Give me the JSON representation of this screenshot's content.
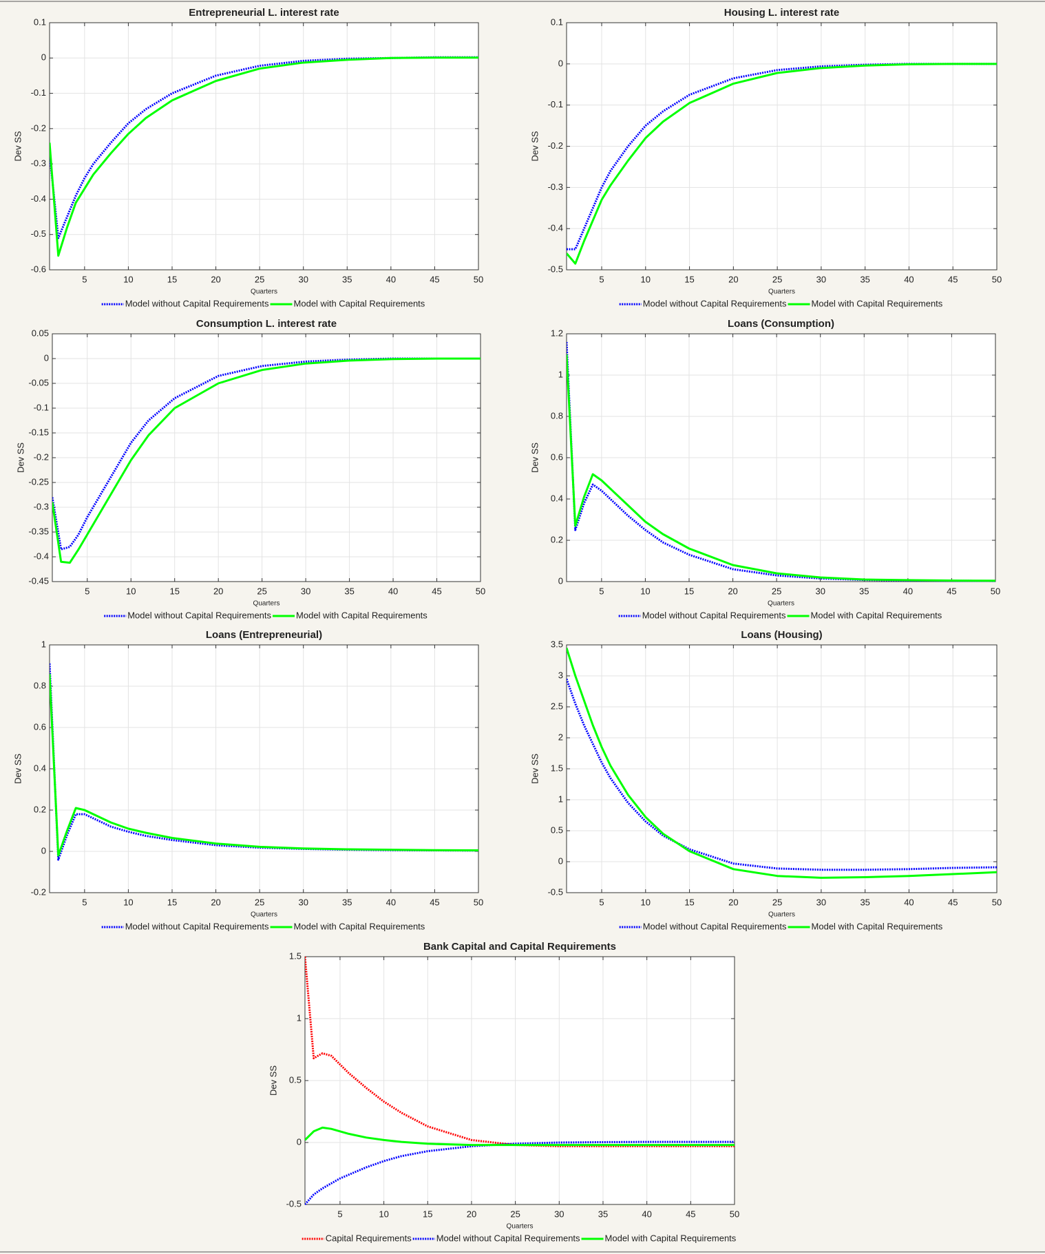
{
  "chart_data": [
    {
      "type": "line",
      "title": "Entrepreneurial L. interest rate",
      "y_label": "Dev SS",
      "x_label": "Quarters",
      "x": [
        1,
        2,
        3,
        4,
        5,
        6,
        8,
        10,
        12,
        15,
        20,
        25,
        30,
        35,
        40,
        45,
        50
      ],
      "xlim": [
        1,
        50
      ],
      "xticks": [
        5,
        10,
        15,
        20,
        25,
        30,
        35,
        40,
        45,
        50
      ],
      "ylim": [
        -0.6,
        0.1
      ],
      "yticks": [
        -0.6,
        -0.5,
        -0.4,
        -0.3,
        -0.2,
        -0.1,
        0,
        0.1
      ],
      "grid": true,
      "series": [
        {
          "name": "Model without Capital Requirements",
          "color": "#0000ff",
          "style": "dotted",
          "values": [
            -0.27,
            -0.51,
            -0.45,
            -0.39,
            -0.34,
            -0.3,
            -0.24,
            -0.185,
            -0.145,
            -0.1,
            -0.05,
            -0.022,
            -0.008,
            -0.002,
            0,
            0.002,
            0.002
          ]
        },
        {
          "name": "Model with Capital Requirements",
          "color": "#00ff00",
          "style": "solid",
          "values": [
            -0.24,
            -0.56,
            -0.48,
            -0.41,
            -0.37,
            -0.33,
            -0.27,
            -0.215,
            -0.17,
            -0.12,
            -0.065,
            -0.03,
            -0.013,
            -0.005,
            0,
            0.001,
            0.001
          ]
        }
      ]
    },
    {
      "type": "line",
      "title": "Housing L. interest rate",
      "y_label": "Dev SS",
      "x_label": "Quarters",
      "x": [
        1,
        2,
        3,
        4,
        5,
        6,
        8,
        10,
        12,
        15,
        20,
        25,
        30,
        35,
        40,
        45,
        50
      ],
      "xlim": [
        1,
        50
      ],
      "xticks": [
        5,
        10,
        15,
        20,
        25,
        30,
        35,
        40,
        45,
        50
      ],
      "ylim": [
        -0.5,
        0.1
      ],
      "yticks": [
        -0.5,
        -0.4,
        -0.3,
        -0.2,
        -0.1,
        0,
        0.1
      ],
      "grid": true,
      "series": [
        {
          "name": "Model without Capital Requirements",
          "color": "#0000ff",
          "style": "dotted",
          "values": [
            -0.45,
            -0.45,
            -0.4,
            -0.35,
            -0.3,
            -0.26,
            -0.2,
            -0.15,
            -0.115,
            -0.075,
            -0.035,
            -0.015,
            -0.006,
            -0.002,
            0,
            0,
            0
          ]
        },
        {
          "name": "Model with Capital Requirements",
          "color": "#00ff00",
          "style": "solid",
          "values": [
            -0.46,
            -0.485,
            -0.43,
            -0.38,
            -0.33,
            -0.295,
            -0.235,
            -0.18,
            -0.14,
            -0.095,
            -0.048,
            -0.022,
            -0.01,
            -0.004,
            -0.001,
            0,
            0
          ]
        }
      ]
    },
    {
      "type": "line",
      "title": "Consumption L. interest rate",
      "y_label": "Dev SS",
      "x_label": "Quarters",
      "x": [
        1,
        2,
        3,
        4,
        5,
        6,
        8,
        10,
        12,
        15,
        20,
        25,
        30,
        35,
        40,
        45,
        50
      ],
      "xlim": [
        1,
        50
      ],
      "xticks": [
        5,
        10,
        15,
        20,
        25,
        30,
        35,
        40,
        45,
        50
      ],
      "ylim": [
        -0.45,
        0.05
      ],
      "yticks": [
        -0.45,
        -0.4,
        -0.35,
        -0.3,
        -0.25,
        -0.2,
        -0.15,
        -0.1,
        -0.05,
        0,
        0.05
      ],
      "grid": true,
      "series": [
        {
          "name": "Model without Capital Requirements",
          "color": "#0000ff",
          "style": "dotted",
          "values": [
            -0.28,
            -0.385,
            -0.38,
            -0.355,
            -0.32,
            -0.29,
            -0.23,
            -0.17,
            -0.125,
            -0.08,
            -0.035,
            -0.015,
            -0.006,
            -0.002,
            0,
            0,
            0
          ]
        },
        {
          "name": "Model with Capital Requirements",
          "color": "#00ff00",
          "style": "solid",
          "values": [
            -0.29,
            -0.41,
            -0.412,
            -0.385,
            -0.355,
            -0.325,
            -0.265,
            -0.205,
            -0.155,
            -0.1,
            -0.05,
            -0.023,
            -0.01,
            -0.004,
            -0.001,
            0,
            0
          ]
        }
      ]
    },
    {
      "type": "line",
      "title": "Loans (Consumption)",
      "y_label": "Dev SS",
      "x_label": "Quarters",
      "x": [
        1,
        2,
        3,
        4,
        5,
        6,
        8,
        10,
        12,
        15,
        20,
        25,
        30,
        35,
        40,
        45,
        50
      ],
      "xlim": [
        1,
        50
      ],
      "xticks": [
        5,
        10,
        15,
        20,
        25,
        30,
        35,
        40,
        45,
        50
      ],
      "ylim": [
        0,
        1.2
      ],
      "yticks": [
        0,
        0.2,
        0.4,
        0.6,
        0.8,
        1,
        1.2
      ],
      "grid": true,
      "series": [
        {
          "name": "Model without Capital Requirements",
          "color": "#0000ff",
          "style": "dotted",
          "values": [
            1.16,
            0.25,
            0.38,
            0.47,
            0.44,
            0.4,
            0.32,
            0.25,
            0.19,
            0.13,
            0.06,
            0.03,
            0.015,
            0.008,
            0.005,
            0.004,
            0.003
          ]
        },
        {
          "name": "Model with Capital Requirements",
          "color": "#00ff00",
          "style": "solid",
          "values": [
            1.1,
            0.27,
            0.41,
            0.52,
            0.49,
            0.45,
            0.37,
            0.29,
            0.23,
            0.16,
            0.08,
            0.04,
            0.02,
            0.01,
            0.007,
            0.005,
            0.004
          ]
        }
      ]
    },
    {
      "type": "line",
      "title": "Loans (Entrepreneurial)",
      "y_label": "Dev SS",
      "x_label": "Quarters",
      "x": [
        1,
        2,
        3,
        4,
        5,
        6,
        8,
        10,
        12,
        15,
        20,
        25,
        30,
        35,
        40,
        45,
        50
      ],
      "xlim": [
        1,
        50
      ],
      "xticks": [
        5,
        10,
        15,
        20,
        25,
        30,
        35,
        40,
        45,
        50
      ],
      "ylim": [
        -0.2,
        1
      ],
      "yticks": [
        -0.2,
        0,
        0.2,
        0.4,
        0.6,
        0.8,
        1
      ],
      "grid": true,
      "series": [
        {
          "name": "Model without Capital Requirements",
          "color": "#0000ff",
          "style": "dotted",
          "values": [
            0.91,
            -0.04,
            0.08,
            0.18,
            0.18,
            0.16,
            0.12,
            0.095,
            0.075,
            0.055,
            0.03,
            0.018,
            0.012,
            0.008,
            0.006,
            0.005,
            0.004
          ]
        },
        {
          "name": "Model with Capital Requirements",
          "color": "#00ff00",
          "style": "solid",
          "values": [
            0.86,
            -0.02,
            0.1,
            0.21,
            0.2,
            0.18,
            0.14,
            0.11,
            0.09,
            0.065,
            0.038,
            0.022,
            0.014,
            0.01,
            0.008,
            0.006,
            0.005
          ]
        }
      ]
    },
    {
      "type": "line",
      "title": "Loans (Housing)",
      "y_label": "Dev SS",
      "x_label": "Quarters",
      "x": [
        1,
        2,
        3,
        4,
        5,
        6,
        8,
        10,
        12,
        15,
        20,
        25,
        30,
        35,
        40,
        45,
        50
      ],
      "xlim": [
        1,
        50
      ],
      "xticks": [
        5,
        10,
        15,
        20,
        25,
        30,
        35,
        40,
        45,
        50
      ],
      "ylim": [
        -0.5,
        3.5
      ],
      "yticks": [
        -0.5,
        0,
        0.5,
        1,
        1.5,
        2,
        2.5,
        3,
        3.5
      ],
      "grid": true,
      "series": [
        {
          "name": "Model without Capital Requirements",
          "color": "#0000ff",
          "style": "dotted",
          "values": [
            2.95,
            2.55,
            2.2,
            1.9,
            1.6,
            1.35,
            0.95,
            0.65,
            0.42,
            0.2,
            -0.03,
            -0.11,
            -0.13,
            -0.13,
            -0.12,
            -0.1,
            -0.09
          ]
        },
        {
          "name": "Model with Capital Requirements",
          "color": "#00ff00",
          "style": "solid",
          "values": [
            3.45,
            3.0,
            2.6,
            2.2,
            1.85,
            1.55,
            1.08,
            0.72,
            0.45,
            0.17,
            -0.12,
            -0.23,
            -0.26,
            -0.25,
            -0.23,
            -0.2,
            -0.17
          ]
        }
      ]
    },
    {
      "type": "line",
      "title": "Bank Capital and Capital Requirements",
      "y_label": "Dev SS",
      "x_label": "Quarters",
      "x": [
        1,
        2,
        3,
        4,
        5,
        6,
        8,
        10,
        12,
        15,
        20,
        25,
        30,
        35,
        40,
        45,
        50
      ],
      "xlim": [
        1,
        50
      ],
      "xticks": [
        5,
        10,
        15,
        20,
        25,
        30,
        35,
        40,
        45,
        50
      ],
      "ylim": [
        -0.5,
        1.5
      ],
      "yticks": [
        -0.5,
        0,
        0.5,
        1,
        1.5
      ],
      "grid": true,
      "series": [
        {
          "name": "Capital Requirements",
          "color": "#ff0000",
          "style": "dotted",
          "values": [
            1.5,
            0.68,
            0.72,
            0.7,
            0.63,
            0.56,
            0.44,
            0.33,
            0.24,
            0.13,
            0.02,
            -0.02,
            -0.03,
            -0.03,
            -0.03,
            -0.03,
            -0.03
          ]
        },
        {
          "name": "Model without Capital Requirements",
          "color": "#0000ff",
          "style": "dotted",
          "values": [
            -0.5,
            -0.42,
            -0.37,
            -0.33,
            -0.29,
            -0.26,
            -0.2,
            -0.15,
            -0.11,
            -0.07,
            -0.03,
            -0.01,
            0,
            0.003,
            0.005,
            0.005,
            0.005
          ]
        },
        {
          "name": "Model with Capital Requirements",
          "color": "#00ff00",
          "style": "solid",
          "values": [
            0.02,
            0.09,
            0.12,
            0.11,
            0.09,
            0.07,
            0.04,
            0.02,
            0.005,
            -0.01,
            -0.02,
            -0.02,
            -0.02,
            -0.02,
            -0.02,
            -0.02,
            -0.02
          ]
        }
      ]
    }
  ]
}
